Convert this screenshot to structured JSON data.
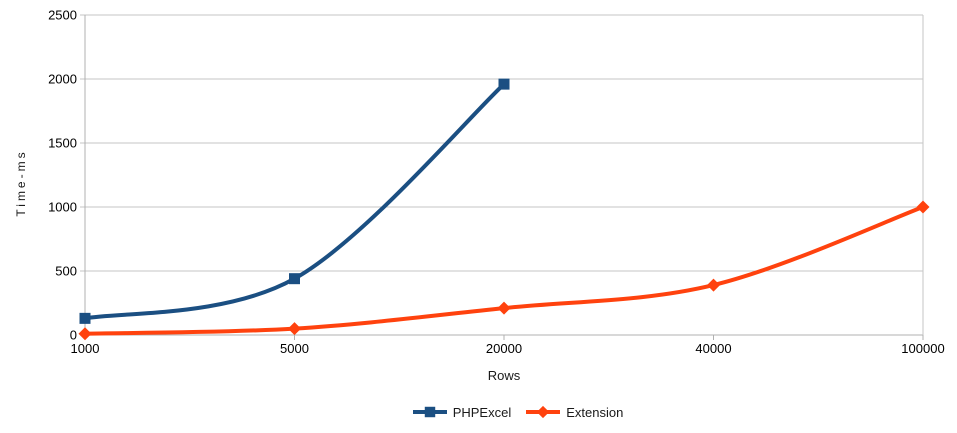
{
  "chart_data": {
    "type": "line",
    "title": "",
    "xlabel": "Rows",
    "ylabel": "Time-ms",
    "categories": [
      "1000",
      "5000",
      "20000",
      "40000",
      "100000"
    ],
    "y_ticks": [
      0,
      500,
      1000,
      1500,
      2000,
      2500
    ],
    "ylim": [
      0,
      2500
    ],
    "grid": "horizontal-only",
    "smooth_lines": true,
    "legend_position": "bottom-center",
    "series": [
      {
        "name": "PHPExcel",
        "marker": "square",
        "color": "#1b4f82",
        "values": [
          130,
          440,
          1960,
          null,
          null
        ]
      },
      {
        "name": "Extension",
        "marker": "diamond",
        "color": "#ff420e",
        "values": [
          10,
          50,
          210,
          390,
          1000
        ]
      }
    ],
    "colors": {
      "gridline": "#c6c6c6",
      "axis": "#b0b0b0",
      "tick_text": "#000000",
      "background": "#ffffff"
    }
  }
}
